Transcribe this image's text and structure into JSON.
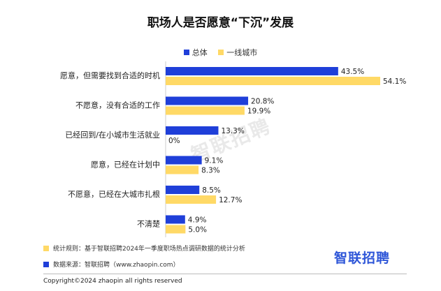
{
  "title": "职场人是否愿意“下沉”发展",
  "watermark": "智联招聘",
  "notes": [
    {
      "label": "统计规则：基于智联招聘2024年一季度职场热点调研数据的统计分析",
      "color": "#FFD966"
    },
    {
      "label": "数据来源：智联招聘（www.zhaopin.com）",
      "color": "#1F3FD9"
    }
  ],
  "logo": "智联招聘",
  "copyright": "Copyright©2024 zhaopin all rights reserved",
  "chart_data": {
    "type": "bar",
    "orientation": "horizontal",
    "title": "职场人是否愿意“下沉”发展",
    "categories": [
      "愿意，但需要找到合适的时机",
      "不愿意，没有合适的工作",
      "已经回到/在小城市生活就业",
      "愿意，已经在计划中",
      "不愿意，已经在大城市扎根",
      "不清楚"
    ],
    "series": [
      {
        "name": "总体",
        "color": "#1F3FD9",
        "values": [
          43.5,
          20.8,
          13.3,
          9.1,
          8.5,
          4.9
        ],
        "labels": [
          "43.5%",
          "20.8%",
          "13.3%",
          "9.1%",
          "8.5%",
          "4.9%"
        ]
      },
      {
        "name": "一线城市",
        "color": "#FFD966",
        "values": [
          54.1,
          19.9,
          0,
          8.3,
          12.7,
          5.0
        ],
        "labels": [
          "54.1%",
          "19.9%",
          "0%",
          "8.3%",
          "12.7%",
          "5.0%"
        ]
      }
    ],
    "xlim": [
      0,
      60
    ],
    "legend_position": "top",
    "grid": false
  }
}
